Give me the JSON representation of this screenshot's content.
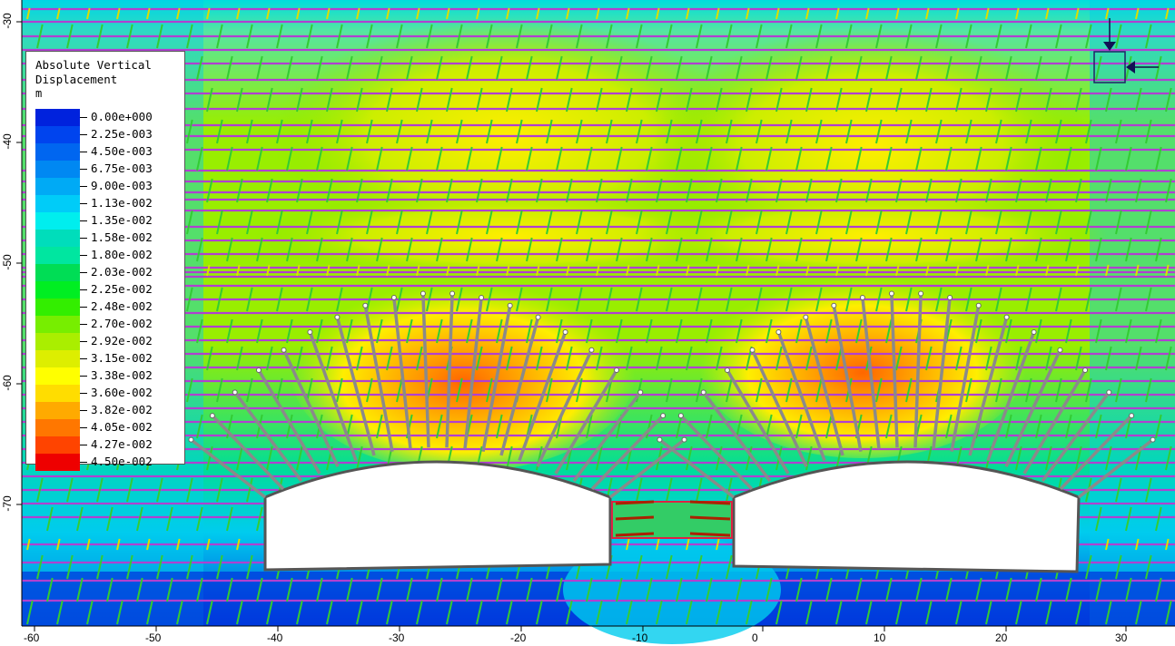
{
  "legend": {
    "title_line1": "Absolute Vertical",
    "title_line2": "Displacement",
    "unit": "m",
    "labels": [
      "0.00e+000",
      "2.25e-003",
      "4.50e-003",
      "6.75e-003",
      "9.00e-003",
      "1.13e-002",
      "1.35e-002",
      "1.58e-002",
      "1.80e-002",
      "2.03e-002",
      "2.25e-002",
      "2.48e-002",
      "2.70e-002",
      "2.92e-002",
      "3.15e-002",
      "3.38e-002",
      "3.60e-002",
      "3.82e-002",
      "4.05e-002",
      "4.27e-002",
      "4.50e-002"
    ],
    "colors": [
      "#0022dd",
      "#0044ee",
      "#0066f0",
      "#0088f2",
      "#00aaf5",
      "#00ccf8",
      "#00eeee",
      "#00ddbb",
      "#00e6a0",
      "#00dd55",
      "#00ee22",
      "#33ee00",
      "#77ee00",
      "#aaee00",
      "#ddee00",
      "#ffff00",
      "#ffdd00",
      "#ffaa00",
      "#ff7700",
      "#ff4400",
      "#ee0000"
    ]
  },
  "axes": {
    "x_ticks": [
      "-60",
      "-50",
      "-40",
      "-30",
      "-20",
      "-10",
      "0",
      "10",
      "20",
      "30"
    ],
    "y_ticks": [
      "-30",
      "-40",
      "-50",
      "-60",
      "-70"
    ]
  },
  "colors": {
    "bolt": "#8a8a8a",
    "bedding": "#b040d0",
    "joint_green": "#33cc33",
    "joint_yellow": "#dddd00",
    "tunnel_outline": "#555555"
  }
}
